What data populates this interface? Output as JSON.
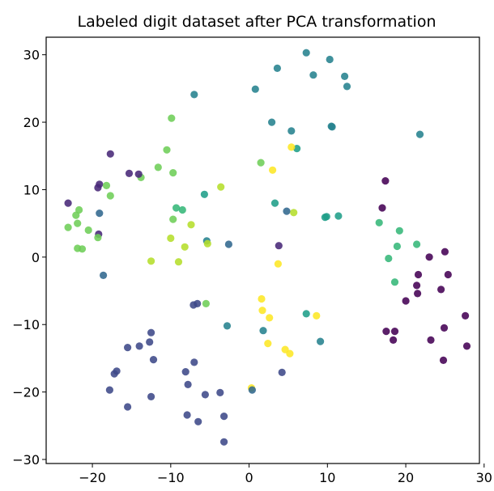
{
  "chart_data": {
    "type": "scatter",
    "title": "Labeled digit dataset after PCA transformation",
    "xlabel": "",
    "ylabel": "",
    "xlim": [
      -25.9,
      29.4
    ],
    "ylim": [
      -30.6,
      32.6
    ],
    "xticks": [
      -20,
      -10,
      0,
      10,
      20,
      30
    ],
    "yticks": [
      -30,
      -20,
      -10,
      0,
      10,
      20,
      30
    ],
    "grid": false,
    "legend": "none",
    "colormap": "viridis",
    "class_colors": {
      "0": "#440154",
      "1": "#482878",
      "2": "#3e4989",
      "3": "#31688e",
      "4": "#26828e",
      "5": "#1f9e89",
      "6": "#35b779",
      "7": "#6ece58",
      "8": "#b5de2b",
      "9": "#fde725"
    },
    "points": [
      {
        "x": 7.3,
        "y": 30.3,
        "label": 4
      },
      {
        "x": 10.3,
        "y": 29.3,
        "label": 4
      },
      {
        "x": 3.6,
        "y": 28.0,
        "label": 4
      },
      {
        "x": 8.2,
        "y": 27.0,
        "label": 4
      },
      {
        "x": 12.2,
        "y": 26.8,
        "label": 4
      },
      {
        "x": 0.8,
        "y": 24.9,
        "label": 4
      },
      {
        "x": 12.5,
        "y": 25.3,
        "label": 4
      },
      {
        "x": -7.0,
        "y": 24.1,
        "label": 4
      },
      {
        "x": 2.9,
        "y": 20.0,
        "label": 4
      },
      {
        "x": 5.4,
        "y": 18.7,
        "label": 4
      },
      {
        "x": 10.5,
        "y": 19.4,
        "label": 4
      },
      {
        "x": 10.6,
        "y": 19.3,
        "label": 4
      },
      {
        "x": 21.8,
        "y": 18.2,
        "label": 4
      },
      {
        "x": 6.1,
        "y": 16.1,
        "label": 5
      },
      {
        "x": 5.4,
        "y": 16.3,
        "label": 9
      },
      {
        "x": -9.9,
        "y": 20.6,
        "label": 7
      },
      {
        "x": -10.5,
        "y": 15.9,
        "label": 7
      },
      {
        "x": -11.6,
        "y": 13.3,
        "label": 7
      },
      {
        "x": -9.7,
        "y": 12.5,
        "label": 7
      },
      {
        "x": -13.8,
        "y": 11.8,
        "label": 7
      },
      {
        "x": -17.7,
        "y": 15.3,
        "label": 1
      },
      {
        "x": -15.3,
        "y": 12.4,
        "label": 1
      },
      {
        "x": -14.1,
        "y": 12.3,
        "label": 1
      },
      {
        "x": -19.1,
        "y": 10.8,
        "label": 1
      },
      {
        "x": -19.3,
        "y": 10.3,
        "label": 1
      },
      {
        "x": -23.1,
        "y": 8.0,
        "label": 1
      },
      {
        "x": -19.1,
        "y": 6.5,
        "label": 3
      },
      {
        "x": -19.2,
        "y": 3.4,
        "label": 1
      },
      {
        "x": -18.2,
        "y": 10.6,
        "label": 7
      },
      {
        "x": -17.7,
        "y": 9.1,
        "label": 7
      },
      {
        "x": -21.7,
        "y": 7.0,
        "label": 7
      },
      {
        "x": -22.1,
        "y": 6.2,
        "label": 7
      },
      {
        "x": -21.9,
        "y": 5.0,
        "label": 7
      },
      {
        "x": -23.1,
        "y": 4.4,
        "label": 7
      },
      {
        "x": -20.5,
        "y": 4.0,
        "label": 7
      },
      {
        "x": -19.3,
        "y": 2.9,
        "label": 7
      },
      {
        "x": -21.9,
        "y": 1.3,
        "label": 7
      },
      {
        "x": -21.3,
        "y": 1.2,
        "label": 7
      },
      {
        "x": -18.6,
        "y": -2.7,
        "label": 3
      },
      {
        "x": -9.3,
        "y": 7.3,
        "label": 6
      },
      {
        "x": -8.5,
        "y": 7.0,
        "label": 6
      },
      {
        "x": -9.7,
        "y": 5.6,
        "label": 7
      },
      {
        "x": -7.4,
        "y": 4.8,
        "label": 8
      },
      {
        "x": -10.0,
        "y": 2.8,
        "label": 8
      },
      {
        "x": -5.7,
        "y": 9.3,
        "label": 5
      },
      {
        "x": -3.6,
        "y": 10.4,
        "label": 8
      },
      {
        "x": -5.4,
        "y": 2.4,
        "label": 4
      },
      {
        "x": -5.3,
        "y": 2.0,
        "label": 8
      },
      {
        "x": -2.6,
        "y": 1.9,
        "label": 3
      },
      {
        "x": -8.2,
        "y": 1.5,
        "label": 8
      },
      {
        "x": -12.5,
        "y": -0.6,
        "label": 8
      },
      {
        "x": -9.0,
        "y": -0.7,
        "label": 8
      },
      {
        "x": 1.5,
        "y": 14.0,
        "label": 7
      },
      {
        "x": 3.0,
        "y": 12.9,
        "label": 9
      },
      {
        "x": 3.3,
        "y": 8.0,
        "label": 5
      },
      {
        "x": 4.8,
        "y": 6.8,
        "label": 3
      },
      {
        "x": 5.7,
        "y": 6.6,
        "label": 8
      },
      {
        "x": 9.7,
        "y": 5.9,
        "label": 5
      },
      {
        "x": 9.9,
        "y": 6.0,
        "label": 5
      },
      {
        "x": 11.4,
        "y": 6.1,
        "label": 5
      },
      {
        "x": 3.8,
        "y": 1.7,
        "label": 1
      },
      {
        "x": 3.7,
        "y": -1.0,
        "label": 9
      },
      {
        "x": 17.4,
        "y": 11.3,
        "label": 0
      },
      {
        "x": 17.0,
        "y": 7.3,
        "label": 0
      },
      {
        "x": 16.6,
        "y": 5.1,
        "label": 6
      },
      {
        "x": 19.2,
        "y": 3.9,
        "label": 6
      },
      {
        "x": 18.9,
        "y": 1.6,
        "label": 6
      },
      {
        "x": 21.4,
        "y": 1.9,
        "label": 6
      },
      {
        "x": 17.8,
        "y": -0.2,
        "label": 6
      },
      {
        "x": 18.6,
        "y": -3.7,
        "label": 6
      },
      {
        "x": 23.0,
        "y": 0.0,
        "label": 0
      },
      {
        "x": 25.0,
        "y": 0.8,
        "label": 0
      },
      {
        "x": 21.6,
        "y": -2.6,
        "label": 0
      },
      {
        "x": 25.4,
        "y": -2.6,
        "label": 0
      },
      {
        "x": 21.4,
        "y": -4.2,
        "label": 0
      },
      {
        "x": 24.5,
        "y": -4.8,
        "label": 0
      },
      {
        "x": 21.5,
        "y": -5.4,
        "label": 0
      },
      {
        "x": 20.0,
        "y": -6.5,
        "label": 0
      },
      {
        "x": 27.6,
        "y": -8.7,
        "label": 0
      },
      {
        "x": 24.9,
        "y": -10.5,
        "label": 0
      },
      {
        "x": 17.5,
        "y": -11.0,
        "label": 0
      },
      {
        "x": 18.6,
        "y": -11.0,
        "label": 0
      },
      {
        "x": 18.4,
        "y": -12.3,
        "label": 0
      },
      {
        "x": 23.2,
        "y": -12.3,
        "label": 0
      },
      {
        "x": 27.8,
        "y": -13.2,
        "label": 0
      },
      {
        "x": 24.8,
        "y": -15.3,
        "label": 0
      },
      {
        "x": 1.6,
        "y": -6.2,
        "label": 9
      },
      {
        "x": 1.7,
        "y": -7.9,
        "label": 9
      },
      {
        "x": 2.6,
        "y": -9.0,
        "label": 9
      },
      {
        "x": 7.3,
        "y": -8.4,
        "label": 5
      },
      {
        "x": 8.6,
        "y": -8.7,
        "label": 9
      },
      {
        "x": 1.8,
        "y": -10.9,
        "label": 4
      },
      {
        "x": 2.4,
        "y": -12.8,
        "label": 9
      },
      {
        "x": 4.6,
        "y": -13.7,
        "label": 9
      },
      {
        "x": 5.2,
        "y": -14.3,
        "label": 9
      },
      {
        "x": 9.1,
        "y": -12.5,
        "label": 4
      },
      {
        "x": 4.2,
        "y": -17.1,
        "label": 2
      },
      {
        "x": 0.3,
        "y": -19.4,
        "label": 9
      },
      {
        "x": 0.4,
        "y": -19.7,
        "label": 3
      },
      {
        "x": -6.6,
        "y": -6.9,
        "label": 2
      },
      {
        "x": -5.5,
        "y": -6.9,
        "label": 7
      },
      {
        "x": -7.1,
        "y": -7.1,
        "label": 2
      },
      {
        "x": -12.5,
        "y": -11.2,
        "label": 2
      },
      {
        "x": -2.8,
        "y": -10.2,
        "label": 4
      },
      {
        "x": -12.7,
        "y": -12.6,
        "label": 2
      },
      {
        "x": -14.0,
        "y": -13.2,
        "label": 2
      },
      {
        "x": -15.5,
        "y": -13.4,
        "label": 2
      },
      {
        "x": -12.2,
        "y": -15.2,
        "label": 2
      },
      {
        "x": -7.0,
        "y": -15.6,
        "label": 2
      },
      {
        "x": -16.9,
        "y": -16.9,
        "label": 2
      },
      {
        "x": -17.2,
        "y": -17.3,
        "label": 2
      },
      {
        "x": -8.1,
        "y": -17.0,
        "label": 2
      },
      {
        "x": -17.8,
        "y": -19.7,
        "label": 2
      },
      {
        "x": -7.8,
        "y": -18.9,
        "label": 2
      },
      {
        "x": -12.5,
        "y": -20.7,
        "label": 2
      },
      {
        "x": -5.6,
        "y": -20.4,
        "label": 2
      },
      {
        "x": -3.7,
        "y": -20.1,
        "label": 2
      },
      {
        "x": -15.5,
        "y": -22.2,
        "label": 2
      },
      {
        "x": -7.9,
        "y": -23.4,
        "label": 2
      },
      {
        "x": -3.2,
        "y": -23.6,
        "label": 2
      },
      {
        "x": -6.5,
        "y": -24.4,
        "label": 2
      },
      {
        "x": -3.2,
        "y": -27.4,
        "label": 2
      }
    ]
  }
}
